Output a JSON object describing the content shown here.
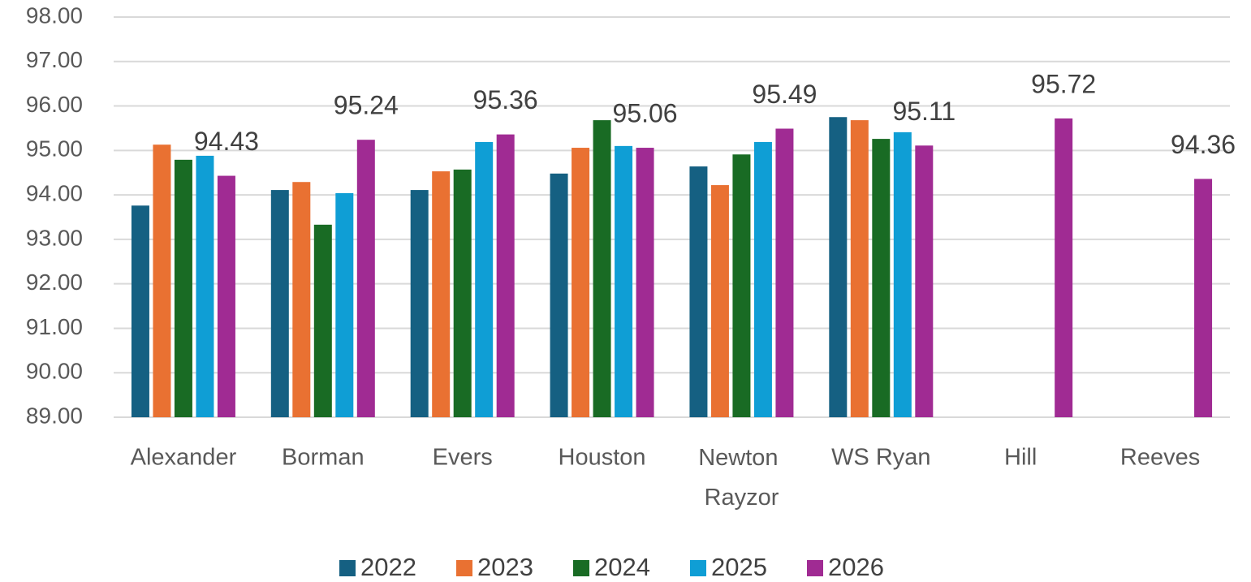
{
  "chart_data": {
    "type": "bar",
    "categories": [
      "Alexander",
      "Borman",
      "Evers",
      "Houston",
      "Newton Rayzor",
      "WS Ryan",
      "Hill",
      "Reeves"
    ],
    "series": [
      {
        "name": "2022",
        "color": "#156082",
        "values": [
          93.76,
          94.11,
          94.11,
          94.48,
          94.64,
          95.75,
          null,
          null
        ]
      },
      {
        "name": "2023",
        "color": "#e97132",
        "values": [
          95.13,
          94.29,
          94.53,
          95.06,
          94.22,
          95.68,
          null,
          null
        ]
      },
      {
        "name": "2024",
        "color": "#196b24",
        "values": [
          94.79,
          93.33,
          94.57,
          95.68,
          94.91,
          95.26,
          null,
          null
        ]
      },
      {
        "name": "2025",
        "color": "#0f9ed5",
        "values": [
          94.88,
          94.04,
          95.19,
          95.1,
          95.19,
          95.41,
          null,
          null
        ]
      },
      {
        "name": "2026",
        "color": "#a02b93",
        "values": [
          94.43,
          95.24,
          95.36,
          95.06,
          95.49,
          95.11,
          95.72,
          94.36
        ],
        "data_labels": true
      }
    ],
    "ylim": [
      89,
      98
    ],
    "yticks": [
      {
        "value": 89,
        "label": "89.00"
      },
      {
        "value": 90,
        "label": "90.00"
      },
      {
        "value": 91,
        "label": "91.00"
      },
      {
        "value": 92,
        "label": "92.00"
      },
      {
        "value": 93,
        "label": "93.00"
      },
      {
        "value": 94,
        "label": "94.00"
      },
      {
        "value": 95,
        "label": "95.00"
      },
      {
        "value": 96,
        "label": "96.00"
      },
      {
        "value": 97,
        "label": "97.00"
      },
      {
        "value": 98,
        "label": "98.00"
      }
    ],
    "grid": true,
    "legend": "bottom"
  }
}
